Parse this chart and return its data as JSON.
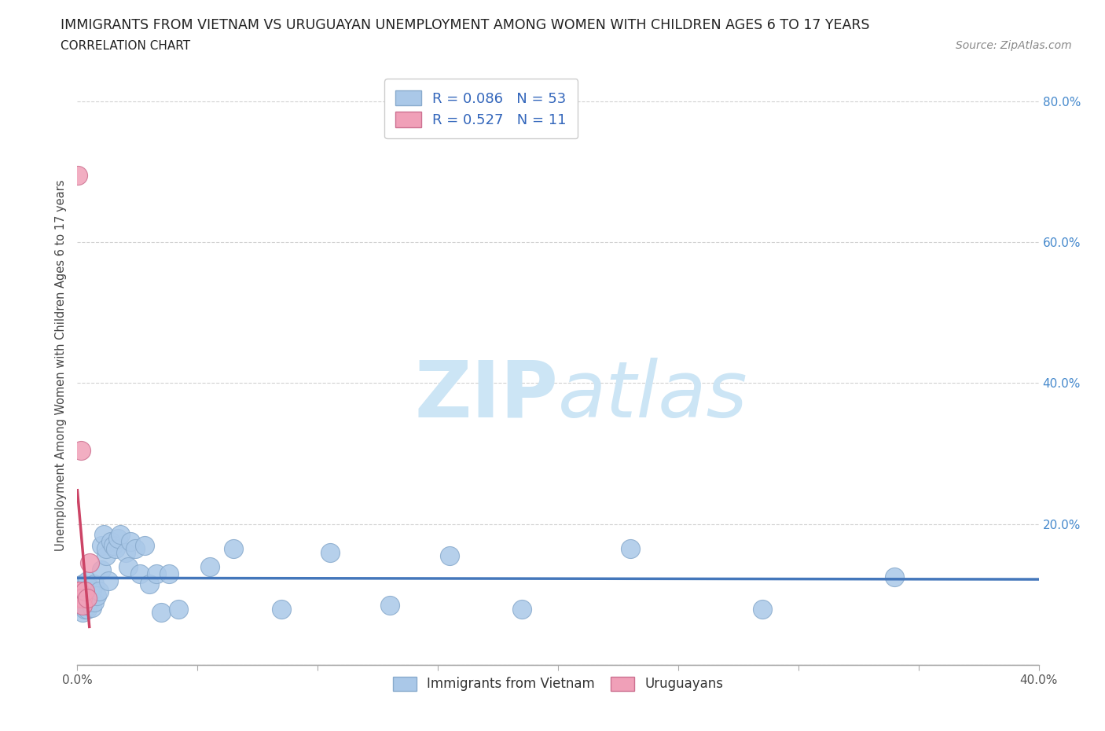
{
  "title_line1": "IMMIGRANTS FROM VIETNAM VS URUGUAYAN UNEMPLOYMENT AMONG WOMEN WITH CHILDREN AGES 6 TO 17 YEARS",
  "title_line2": "CORRELATION CHART",
  "source_text": "Source: ZipAtlas.com",
  "ylabel": "Unemployment Among Women with Children Ages 6 to 17 years",
  "x_min": 0.0,
  "x_max": 0.4,
  "y_min": 0.0,
  "y_max": 0.85,
  "x_ticks": [
    0.0,
    0.05,
    0.1,
    0.15,
    0.2,
    0.25,
    0.3,
    0.35,
    0.4
  ],
  "x_tick_labels": [
    "0.0%",
    "",
    "",
    "",
    "",
    "",
    "",
    "",
    "40.0%"
  ],
  "y_ticks": [
    0.0,
    0.2,
    0.4,
    0.6,
    0.8
  ],
  "y_tick_labels_right": [
    "",
    "20.0%",
    "40.0%",
    "60.0%",
    "80.0%"
  ],
  "grid_color": "#cccccc",
  "background_color": "#ffffff",
  "watermark_text": "ZIPatlas",
  "watermark_color": "#cce5f5",
  "blue_R": 0.086,
  "blue_N": 53,
  "pink_R": 0.527,
  "pink_N": 11,
  "blue_scatter_x": [
    0.0005,
    0.001,
    0.001,
    0.0015,
    0.002,
    0.002,
    0.002,
    0.003,
    0.003,
    0.003,
    0.004,
    0.004,
    0.004,
    0.005,
    0.005,
    0.006,
    0.006,
    0.007,
    0.007,
    0.008,
    0.009,
    0.01,
    0.01,
    0.011,
    0.012,
    0.012,
    0.013,
    0.014,
    0.015,
    0.016,
    0.017,
    0.018,
    0.02,
    0.021,
    0.022,
    0.024,
    0.026,
    0.028,
    0.03,
    0.033,
    0.035,
    0.038,
    0.042,
    0.055,
    0.065,
    0.085,
    0.105,
    0.13,
    0.155,
    0.185,
    0.23,
    0.285,
    0.34
  ],
  "blue_scatter_y": [
    0.1,
    0.11,
    0.085,
    0.095,
    0.115,
    0.09,
    0.075,
    0.105,
    0.09,
    0.08,
    0.12,
    0.095,
    0.08,
    0.11,
    0.09,
    0.105,
    0.082,
    0.115,
    0.09,
    0.098,
    0.105,
    0.17,
    0.135,
    0.185,
    0.155,
    0.165,
    0.12,
    0.175,
    0.17,
    0.165,
    0.18,
    0.185,
    0.16,
    0.14,
    0.175,
    0.165,
    0.13,
    0.17,
    0.115,
    0.13,
    0.075,
    0.13,
    0.08,
    0.14,
    0.165,
    0.08,
    0.16,
    0.085,
    0.155,
    0.08,
    0.165,
    0.08,
    0.125
  ],
  "blue_color": "#aac8e8",
  "blue_edge_color": "#88aacc",
  "blue_line_color": "#4477bb",
  "pink_scatter_x": [
    0.0002,
    0.0003,
    0.0005,
    0.001,
    0.001,
    0.0015,
    0.002,
    0.002,
    0.003,
    0.004,
    0.005
  ],
  "pink_scatter_y": [
    0.695,
    0.105,
    0.105,
    0.105,
    0.095,
    0.305,
    0.095,
    0.085,
    0.105,
    0.095,
    0.145
  ],
  "pink_color": "#f0a0b8",
  "pink_edge_color": "#cc7090",
  "pink_line_color": "#cc4466",
  "legend_box_color": "#ffffff",
  "legend_border_color": "#cccccc",
  "legend_text_color": "#3366bb",
  "title_color": "#222222",
  "axis_label_color": "#444444"
}
